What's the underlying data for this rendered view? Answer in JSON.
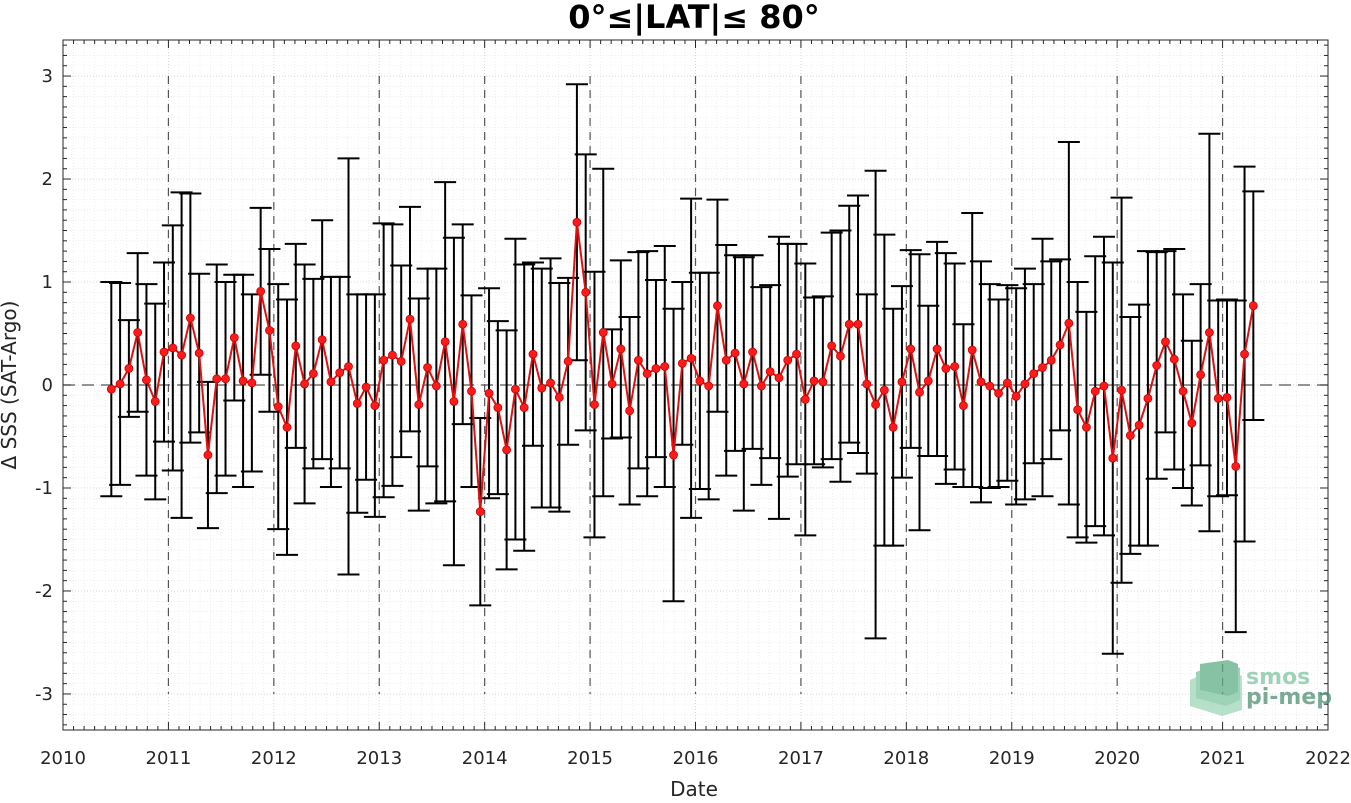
{
  "chart_data": {
    "type": "line",
    "title": "0°≤|LAT|≤ 80°",
    "xlabel": "Date",
    "ylabel": "Δ SSS (SAT-Argo)",
    "xlim": [
      2010,
      2022
    ],
    "ylim": [
      -3.35,
      3.35
    ],
    "xticks": [
      "2010",
      "2011",
      "2012",
      "2013",
      "2014",
      "2015",
      "2016",
      "2017",
      "2018",
      "2019",
      "2020",
      "2021",
      "2022"
    ],
    "yticks": [
      "-3",
      "-2",
      "-1",
      "0",
      "1",
      "2",
      "3"
    ],
    "grid": true,
    "minor_grid": true,
    "year_separators": true,
    "zero_line": true,
    "marker_color": "#ff1a1a",
    "line_color": "#e01010",
    "errorbar_color": "#000000",
    "series": [
      {
        "x": [
          "2010-06",
          "2010-07",
          "2010-08",
          "2010-09",
          "2010-10",
          "2010-11",
          "2010-12",
          "2011-01",
          "2011-02",
          "2011-03",
          "2011-04",
          "2011-05",
          "2011-06",
          "2011-07",
          "2011-08",
          "2011-09",
          "2011-10",
          "2011-11",
          "2011-12",
          "2012-01",
          "2012-02",
          "2012-03",
          "2012-04",
          "2012-05",
          "2012-06",
          "2012-07",
          "2012-08",
          "2012-09",
          "2012-10",
          "2012-11",
          "2012-12",
          "2013-01",
          "2013-02",
          "2013-03",
          "2013-04",
          "2013-05",
          "2013-06",
          "2013-07",
          "2013-08",
          "2013-09",
          "2013-10",
          "2013-11",
          "2013-12",
          "2014-01",
          "2014-02",
          "2014-03",
          "2014-04",
          "2014-05",
          "2014-06",
          "2014-07",
          "2014-08",
          "2014-09",
          "2014-10",
          "2014-11",
          "2014-12",
          "2015-01",
          "2015-02",
          "2015-03",
          "2015-04",
          "2015-05",
          "2015-06",
          "2015-07",
          "2015-08",
          "2015-09",
          "2015-10",
          "2015-11",
          "2015-12",
          "2016-01",
          "2016-02",
          "2016-03",
          "2016-04",
          "2016-05",
          "2016-06",
          "2016-07",
          "2016-08",
          "2016-09",
          "2016-10",
          "2016-11",
          "2016-12",
          "2017-01",
          "2017-02",
          "2017-03",
          "2017-04",
          "2017-05",
          "2017-06",
          "2017-07",
          "2017-08",
          "2017-09",
          "2017-10",
          "2017-11",
          "2017-12",
          "2018-01",
          "2018-02",
          "2018-03",
          "2018-04",
          "2018-05",
          "2018-06",
          "2018-07",
          "2018-08",
          "2018-09",
          "2018-10",
          "2018-11",
          "2018-12",
          "2019-01",
          "2019-02",
          "2019-03",
          "2019-04",
          "2019-05",
          "2019-06",
          "2019-07",
          "2019-08",
          "2019-09",
          "2019-10",
          "2019-11",
          "2019-12",
          "2020-01",
          "2020-02",
          "2020-03",
          "2020-04",
          "2020-05",
          "2020-06",
          "2020-07",
          "2020-08",
          "2020-09",
          "2020-10",
          "2020-11",
          "2020-12",
          "2021-01",
          "2021-02",
          "2021-03",
          "2021-04"
        ],
        "y": [
          -0.04,
          0.01,
          0.16,
          0.51,
          0.05,
          -0.16,
          0.32,
          0.36,
          0.29,
          0.65,
          0.31,
          -0.68,
          0.06,
          0.06,
          0.46,
          0.04,
          0.02,
          0.91,
          0.53,
          -0.21,
          -0.41,
          0.38,
          0.01,
          0.11,
          0.44,
          0.03,
          0.12,
          0.18,
          -0.18,
          -0.02,
          -0.2,
          0.24,
          0.29,
          0.23,
          0.64,
          -0.19,
          0.17,
          -0.01,
          0.42,
          -0.16,
          0.59,
          -0.06,
          -1.23,
          -0.08,
          -0.22,
          -0.63,
          -0.04,
          -0.22,
          0.3,
          -0.03,
          0.02,
          -0.12,
          0.23,
          1.58,
          0.9,
          -0.19,
          0.51,
          0.01,
          0.35,
          -0.25,
          0.24,
          0.11,
          0.16,
          0.18,
          -0.68,
          0.21,
          0.26,
          0.04,
          -0.01,
          0.77,
          0.24,
          0.31,
          0.01,
          0.32,
          -0.01,
          0.13,
          0.07,
          0.24,
          0.3,
          -0.14,
          0.04,
          0.03,
          0.38,
          0.28,
          0.59,
          0.59,
          0.01,
          -0.19,
          -0.05,
          -0.41,
          0.03,
          0.35,
          -0.07,
          0.04,
          0.35,
          0.16,
          0.18,
          -0.2,
          0.34,
          0.03,
          -0.01,
          -0.08,
          0.02,
          -0.11,
          0.01,
          0.11,
          0.17,
          0.24,
          0.39,
          0.6,
          -0.24,
          -0.41,
          -0.06,
          -0.01,
          -0.71,
          -0.05,
          -0.49,
          -0.39,
          -0.13,
          0.19,
          0.42,
          0.25,
          -0.06,
          -0.37,
          0.1,
          0.51,
          -0.13,
          -0.12,
          -0.79,
          0.3,
          0.77
        ],
        "err": [
          1.04,
          0.98,
          0.47,
          0.77,
          0.93,
          0.95,
          0.87,
          1.19,
          1.58,
          1.21,
          0.77,
          0.71,
          1.11,
          0.94,
          0.61,
          1.03,
          0.86,
          0.81,
          0.79,
          1.19,
          1.24,
          0.99,
          1.16,
          0.92,
          1.16,
          1.02,
          0.93,
          2.02,
          1.06,
          0.9,
          1.08,
          1.33,
          1.27,
          0.93,
          1.09,
          1.03,
          0.96,
          1.14,
          1.55,
          1.59,
          0.97,
          0.93,
          0.91,
          1.02,
          0.84,
          1.16,
          1.46,
          1.39,
          0.89,
          1.16,
          1.21,
          1.11,
          0.81,
          1.34,
          1.34,
          1.29,
          1.59,
          0.53,
          0.86,
          0.91,
          1.05,
          1.19,
          0.86,
          1.17,
          1.42,
          0.79,
          1.55,
          1.05,
          1.1,
          1.03,
          1.12,
          0.95,
          1.23,
          0.94,
          0.96,
          0.84,
          1.37,
          1.13,
          1.07,
          1.32,
          0.81,
          0.83,
          1.1,
          1.22,
          1.15,
          1.25,
          0.87,
          2.27,
          1.51,
          1.15,
          0.93,
          0.96,
          1.34,
          0.73,
          1.04,
          1.12,
          1.0,
          0.79,
          1.33,
          1.17,
          0.99,
          0.91,
          0.95,
          1.05,
          1.12,
          0.87,
          1.25,
          0.96,
          0.83,
          1.76,
          1.24,
          1.12,
          1.31,
          1.45,
          1.9,
          1.87,
          1.15,
          1.17,
          1.43,
          1.1,
          0.88,
          1.07,
          0.94,
          0.8,
          0.88,
          1.93,
          0.95,
          0.95,
          1.61,
          1.82,
          1.11
        ]
      }
    ]
  },
  "logo": {
    "line1": "smos",
    "line2": "pi-mep"
  },
  "colors": {
    "logo_green": "#7fc5a0",
    "logo_dark": "#4e8f72"
  }
}
